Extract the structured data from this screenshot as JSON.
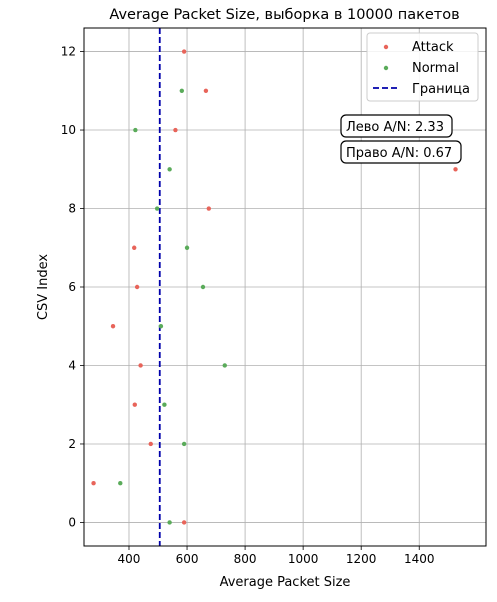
{
  "chart_data": {
    "type": "scatter",
    "title": "Average Packet Size, выборка в 10000 пакетов",
    "xlabel": "Average Packet Size",
    "ylabel": "CSV Index",
    "xlim": [
      245,
      1630
    ],
    "ylim": [
      -0.6,
      12.6
    ],
    "xticks": [
      400,
      600,
      800,
      1000,
      1200,
      1400
    ],
    "yticks": [
      0,
      2,
      4,
      6,
      8,
      10,
      12
    ],
    "grid": true,
    "legend_position": "top-right",
    "series": [
      {
        "name": "Attack",
        "color": "#e8645a",
        "points": [
          {
            "x": 590,
            "y": 12
          },
          {
            "x": 665,
            "y": 11
          },
          {
            "x": 560,
            "y": 10
          },
          {
            "x": 1525,
            "y": 9
          },
          {
            "x": 675,
            "y": 8
          },
          {
            "x": 418,
            "y": 7
          },
          {
            "x": 428,
            "y": 6
          },
          {
            "x": 345,
            "y": 5
          },
          {
            "x": 440,
            "y": 4
          },
          {
            "x": 420,
            "y": 3
          },
          {
            "x": 475,
            "y": 2
          },
          {
            "x": 278,
            "y": 1
          },
          {
            "x": 590,
            "y": 0
          }
        ]
      },
      {
        "name": "Normal",
        "color": "#5aab5a",
        "points": [
          {
            "x": 582,
            "y": 11
          },
          {
            "x": 422,
            "y": 10
          },
          {
            "x": 540,
            "y": 9
          },
          {
            "x": 497,
            "y": 8
          },
          {
            "x": 600,
            "y": 7
          },
          {
            "x": 655,
            "y": 6
          },
          {
            "x": 510,
            "y": 5
          },
          {
            "x": 730,
            "y": 4
          },
          {
            "x": 522,
            "y": 3
          },
          {
            "x": 590,
            "y": 2
          },
          {
            "x": 370,
            "y": 1
          },
          {
            "x": 540,
            "y": 0
          }
        ]
      }
    ],
    "boundary": {
      "name": "Граница",
      "x": 506,
      "color": "#0000aa"
    },
    "annotations": [
      {
        "text": "Лево A/N: 2.33"
      },
      {
        "text": "Право A/N: 0.67"
      }
    ]
  }
}
